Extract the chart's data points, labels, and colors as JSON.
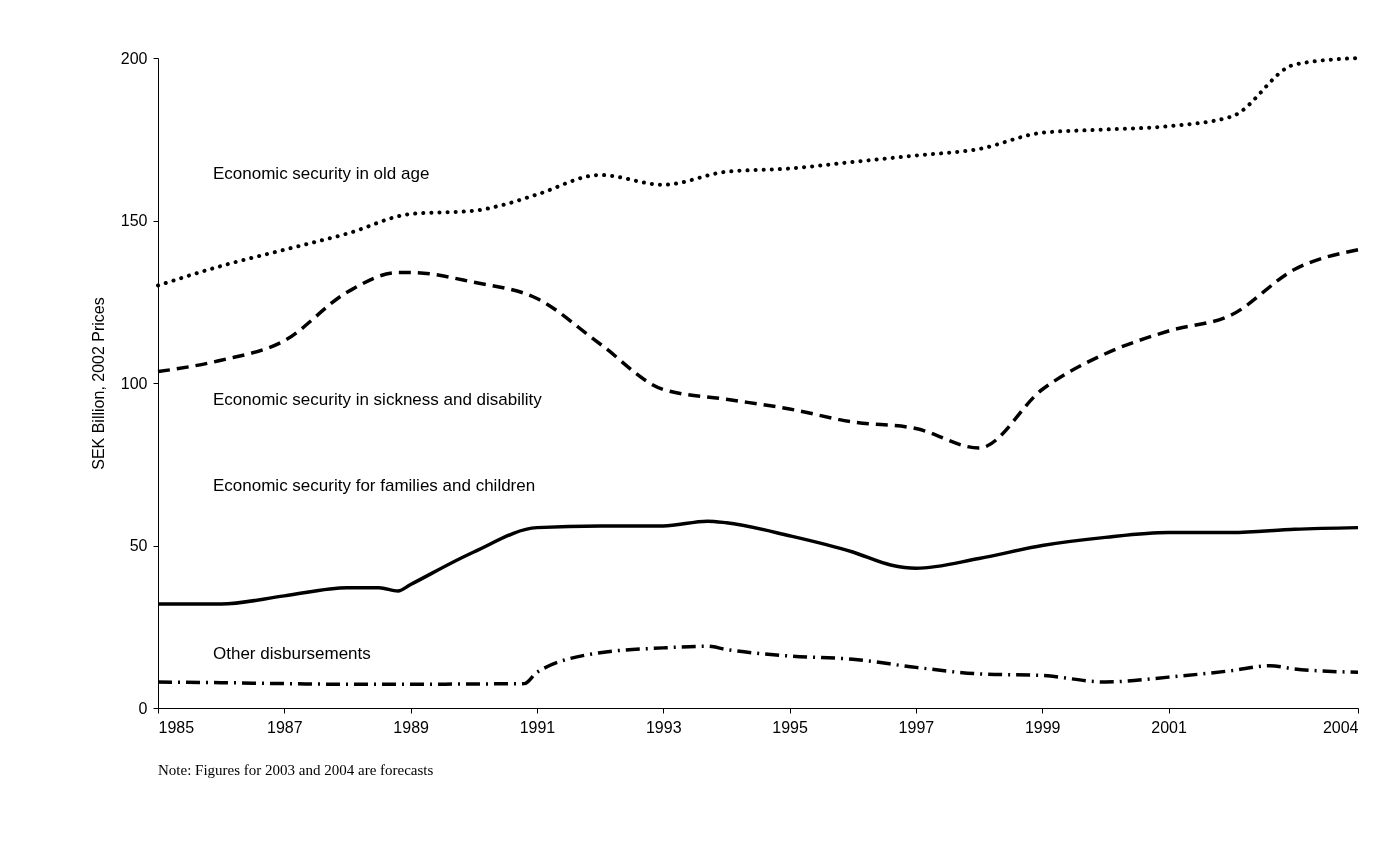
{
  "chart_data": {
    "type": "line",
    "ylabel": "SEK Billion, 2002 Prices",
    "xlim": [
      1985,
      2004
    ],
    "xticks": [
      1985,
      1987,
      1989,
      1991,
      1993,
      1995,
      1997,
      1999,
      2001,
      2004
    ],
    "ylim": [
      0,
      200
    ],
    "yticks": [
      0,
      50,
      100,
      150,
      200
    ],
    "grid": false,
    "marker": "none",
    "series": [
      {
        "name": "Economic security in old age",
        "color": "#000000",
        "line_style": "dotted",
        "x": [
          1985,
          1986,
          1987,
          1988,
          1989,
          1990,
          1990.5,
          1991,
          1992,
          1993,
          1994,
          1995,
          1996,
          1997,
          1998,
          1999,
          2000,
          2001,
          2002,
          2003,
          2004
        ],
        "values": [
          130,
          136,
          141,
          146,
          152,
          153,
          155,
          158,
          164,
          161,
          165,
          166,
          168,
          170,
          172,
          177,
          178,
          179,
          182,
          198,
          200
        ]
      },
      {
        "name": "Economic security in sickness and disability",
        "color": "#000000",
        "line_style": "dashed",
        "x": [
          1985,
          1986,
          1987,
          1988,
          1988.8,
          1989,
          1990,
          1991,
          1992,
          1993,
          1994,
          1995,
          1996,
          1997,
          1998,
          1999,
          2000,
          2001,
          2002,
          2003,
          2004
        ],
        "values": [
          103.5,
          107,
          113,
          128,
          134,
          134,
          131,
          126,
          112,
          98,
          95,
          92,
          88,
          86,
          80,
          98,
          109,
          116,
          121,
          135,
          141
        ]
      },
      {
        "name": "Economic security for families and children",
        "color": "#000000",
        "line_style": "solid",
        "x": [
          1985,
          1986,
          1987,
          1988,
          1988.5,
          1988.8,
          1989,
          1990,
          1991,
          1992,
          1993,
          1993.7,
          1994,
          1995,
          1996,
          1996.6,
          1997,
          1998,
          1999,
          2000,
          2001,
          2002,
          2003,
          2004
        ],
        "values": [
          32,
          32,
          34.5,
          37,
          37,
          36,
          38,
          48,
          55.5,
          56,
          56,
          57.5,
          57,
          53,
          48,
          44,
          43,
          46,
          50,
          52.5,
          54,
          54,
          55,
          55.5
        ]
      },
      {
        "name": "Other disbursements",
        "color": "#000000",
        "line_style": "dashdot",
        "x": [
          1985,
          1986,
          1987,
          1988,
          1989,
          1990,
          1990.8,
          1991,
          1992,
          1993,
          1993.7,
          1994,
          1995,
          1996,
          1997,
          1998,
          1999,
          2000,
          2001,
          2002,
          2002.6,
          2003,
          2004
        ],
        "values": [
          8,
          7.8,
          7.5,
          7.3,
          7.3,
          7.4,
          7.5,
          11,
          17,
          18.5,
          19,
          18,
          16,
          15,
          12.5,
          10.5,
          10,
          8,
          9.5,
          11.5,
          13,
          12,
          11
        ]
      }
    ],
    "annotations": [
      "Note: Figures for 2003 and 2004 are forecasts"
    ]
  }
}
